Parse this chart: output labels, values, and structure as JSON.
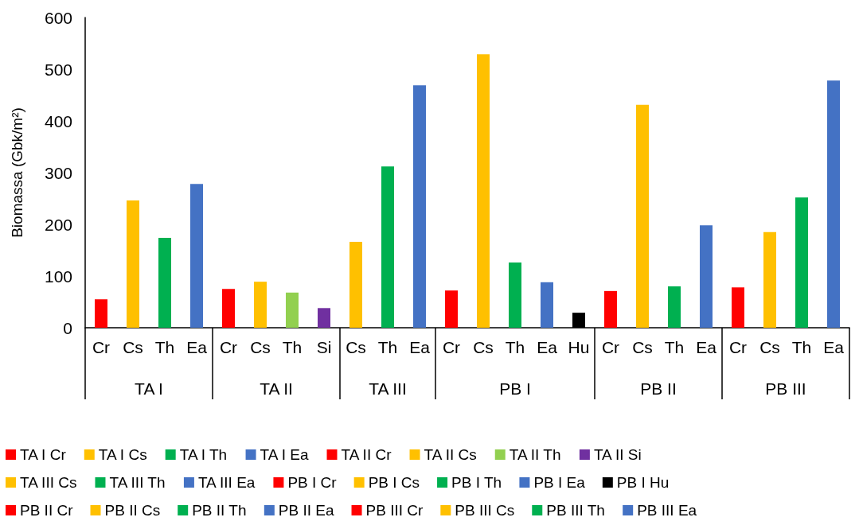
{
  "chart_data": {
    "type": "bar",
    "ylabel": "Biomassa (Gbk/m²)",
    "categories": [
      "Cr",
      "Cs",
      "Th",
      "Ea",
      "Cr",
      "Cs",
      "Th",
      "Si",
      "Cs",
      "Th",
      "Ea",
      "Cr",
      "Cs",
      "Th",
      "Ea",
      "Hu",
      "Cr",
      "Cs",
      "Th",
      "Ea",
      "Cr",
      "Cs",
      "Th",
      "Ea"
    ],
    "annotations": [
      "TA I",
      "TA II",
      "TA III",
      "PB I",
      "PB II",
      "PB III"
    ],
    "series": [
      {
        "name": "TA I Cr",
        "color": "#ff0000",
        "values": [
          55,
          null,
          null,
          null,
          null,
          null,
          null,
          null,
          null,
          null,
          null,
          null,
          null,
          null,
          null,
          null,
          null,
          null,
          null,
          null,
          null,
          null,
          null,
          null
        ]
      },
      {
        "name": "TA I Cs",
        "color": "#ffc000",
        "values": [
          null,
          246,
          null,
          null,
          null,
          null,
          null,
          null,
          null,
          null,
          null,
          null,
          null,
          null,
          null,
          null,
          null,
          null,
          null,
          null,
          null,
          null,
          null,
          null
        ]
      },
      {
        "name": "TA I Th",
        "color": "#00b050",
        "values": [
          null,
          null,
          174,
          null,
          null,
          null,
          null,
          null,
          null,
          null,
          null,
          null,
          null,
          null,
          null,
          null,
          null,
          null,
          null,
          null,
          null,
          null,
          null,
          null
        ]
      },
      {
        "name": "TA I Ea",
        "color": "#4472c4",
        "values": [
          null,
          null,
          null,
          278,
          null,
          null,
          null,
          null,
          null,
          null,
          null,
          null,
          null,
          null,
          null,
          null,
          null,
          null,
          null,
          null,
          null,
          null,
          null,
          null
        ]
      },
      {
        "name": "TA II Cr",
        "color": "#ff0000",
        "values": [
          null,
          null,
          null,
          null,
          75,
          null,
          null,
          null,
          null,
          null,
          null,
          null,
          null,
          null,
          null,
          null,
          null,
          null,
          null,
          null,
          null,
          null,
          null,
          null
        ]
      },
      {
        "name": "TA II Cs",
        "color": "#ffc000",
        "values": [
          null,
          null,
          null,
          null,
          null,
          89,
          null,
          null,
          null,
          null,
          null,
          null,
          null,
          null,
          null,
          null,
          null,
          null,
          null,
          null,
          null,
          null,
          null,
          null
        ]
      },
      {
        "name": "TA II Th",
        "color": "#92d050",
        "values": [
          null,
          null,
          null,
          null,
          null,
          null,
          68,
          null,
          null,
          null,
          null,
          null,
          null,
          null,
          null,
          null,
          null,
          null,
          null,
          null,
          null,
          null,
          null,
          null
        ]
      },
      {
        "name": "TA II Si",
        "color": "#7030a0",
        "values": [
          null,
          null,
          null,
          null,
          null,
          null,
          null,
          38,
          null,
          null,
          null,
          null,
          null,
          null,
          null,
          null,
          null,
          null,
          null,
          null,
          null,
          null,
          null,
          null
        ]
      },
      {
        "name": "TA III Cs",
        "color": "#ffc000",
        "values": [
          null,
          null,
          null,
          null,
          null,
          null,
          null,
          null,
          166,
          null,
          null,
          null,
          null,
          null,
          null,
          null,
          null,
          null,
          null,
          null,
          null,
          null,
          null,
          null
        ]
      },
      {
        "name": "TA III Th",
        "color": "#00b050",
        "values": [
          null,
          null,
          null,
          null,
          null,
          null,
          null,
          null,
          null,
          312,
          null,
          null,
          null,
          null,
          null,
          null,
          null,
          null,
          null,
          null,
          null,
          null,
          null,
          null
        ]
      },
      {
        "name": "TA III Ea",
        "color": "#4472c4",
        "values": [
          null,
          null,
          null,
          null,
          null,
          null,
          null,
          null,
          null,
          null,
          469,
          null,
          null,
          null,
          null,
          null,
          null,
          null,
          null,
          null,
          null,
          null,
          null,
          null
        ]
      },
      {
        "name": "PB I Cr",
        "color": "#ff0000",
        "values": [
          null,
          null,
          null,
          null,
          null,
          null,
          null,
          null,
          null,
          null,
          null,
          72,
          null,
          null,
          null,
          null,
          null,
          null,
          null,
          null,
          null,
          null,
          null,
          null
        ]
      },
      {
        "name": "PB I Cs",
        "color": "#ffc000",
        "values": [
          null,
          null,
          null,
          null,
          null,
          null,
          null,
          null,
          null,
          null,
          null,
          null,
          529,
          null,
          null,
          null,
          null,
          null,
          null,
          null,
          null,
          null,
          null,
          null
        ]
      },
      {
        "name": "PB I Th",
        "color": "#00b050",
        "values": [
          null,
          null,
          null,
          null,
          null,
          null,
          null,
          null,
          null,
          null,
          null,
          null,
          null,
          126,
          null,
          null,
          null,
          null,
          null,
          null,
          null,
          null,
          null,
          null
        ]
      },
      {
        "name": "PB I Ea",
        "color": "#4472c4",
        "values": [
          null,
          null,
          null,
          null,
          null,
          null,
          null,
          null,
          null,
          null,
          null,
          null,
          null,
          null,
          88,
          null,
          null,
          null,
          null,
          null,
          null,
          null,
          null,
          null
        ]
      },
      {
        "name": "PB I Hu",
        "color": "#000000",
        "values": [
          null,
          null,
          null,
          null,
          null,
          null,
          null,
          null,
          null,
          null,
          null,
          null,
          null,
          null,
          null,
          29,
          null,
          null,
          null,
          null,
          null,
          null,
          null,
          null
        ]
      },
      {
        "name": "PB II Cr",
        "color": "#ff0000",
        "values": [
          null,
          null,
          null,
          null,
          null,
          null,
          null,
          null,
          null,
          null,
          null,
          null,
          null,
          null,
          null,
          null,
          71,
          null,
          null,
          null,
          null,
          null,
          null,
          null
        ]
      },
      {
        "name": "PB II Cs",
        "color": "#ffc000",
        "values": [
          null,
          null,
          null,
          null,
          null,
          null,
          null,
          null,
          null,
          null,
          null,
          null,
          null,
          null,
          null,
          null,
          null,
          431,
          null,
          null,
          null,
          null,
          null,
          null
        ]
      },
      {
        "name": "PB II Th",
        "color": "#00b050",
        "values": [
          null,
          null,
          null,
          null,
          null,
          null,
          null,
          null,
          null,
          null,
          null,
          null,
          null,
          null,
          null,
          null,
          null,
          null,
          80,
          null,
          null,
          null,
          null,
          null
        ]
      },
      {
        "name": "PB II Ea",
        "color": "#4472c4",
        "values": [
          null,
          null,
          null,
          null,
          null,
          null,
          null,
          null,
          null,
          null,
          null,
          null,
          null,
          null,
          null,
          null,
          null,
          null,
          null,
          198,
          null,
          null,
          null,
          null
        ]
      },
      {
        "name": "PB III Cr",
        "color": "#ff0000",
        "values": [
          null,
          null,
          null,
          null,
          null,
          null,
          null,
          null,
          null,
          null,
          null,
          null,
          null,
          null,
          null,
          null,
          null,
          null,
          null,
          null,
          78,
          null,
          null,
          null
        ]
      },
      {
        "name": "PB III Cs",
        "color": "#ffc000",
        "values": [
          null,
          null,
          null,
          null,
          null,
          null,
          null,
          null,
          null,
          null,
          null,
          null,
          null,
          null,
          null,
          null,
          null,
          null,
          null,
          null,
          null,
          185,
          null,
          null
        ]
      },
      {
        "name": "PB III Th",
        "color": "#00b050",
        "values": [
          null,
          null,
          null,
          null,
          null,
          null,
          null,
          null,
          null,
          null,
          null,
          null,
          null,
          null,
          null,
          null,
          null,
          null,
          null,
          null,
          null,
          null,
          252,
          null
        ]
      },
      {
        "name": "PB III Ea",
        "color": "#4472c4",
        "values": [
          null,
          null,
          null,
          null,
          null,
          null,
          null,
          null,
          null,
          null,
          null,
          null,
          null,
          null,
          null,
          null,
          null,
          null,
          null,
          null,
          null,
          null,
          null,
          478
        ]
      }
    ],
    "ylim": [
      0,
      600
    ],
    "yticks": [
      0,
      100,
      200,
      300,
      400,
      500,
      600
    ],
    "grid": false,
    "legend": "bottom"
  }
}
